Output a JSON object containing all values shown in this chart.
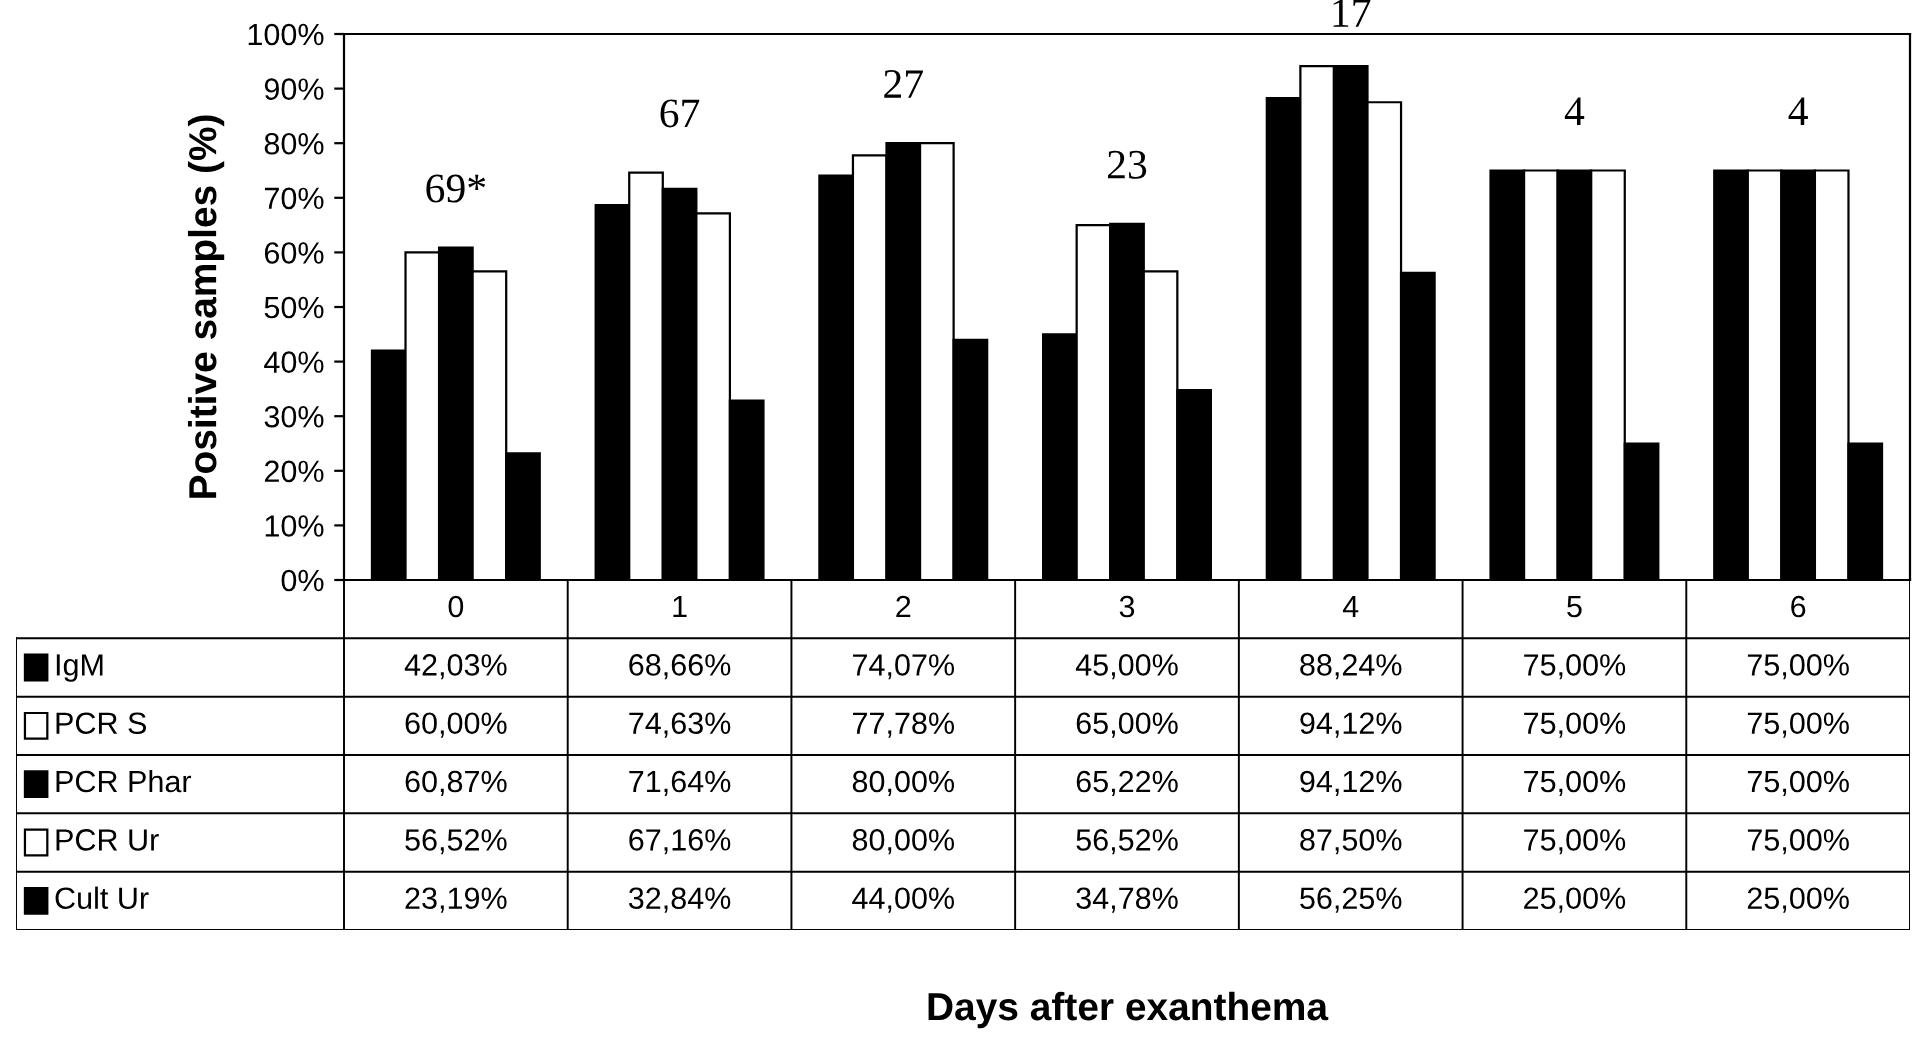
{
  "chart_data": {
    "type": "bar",
    "ylabel": "Positive samples (%)",
    "categories": [
      "0",
      "1",
      "2",
      "3",
      "4",
      "5",
      "6"
    ],
    "series": [
      {
        "name": "IgM",
        "color": "#000000",
        "values": [
          42.03,
          68.66,
          74.07,
          45.0,
          88.24,
          75.0,
          75.0
        ],
        "value_labels": [
          "42,03%",
          "68,66%",
          "74,07%",
          "45,00%",
          "88,24%",
          "75,00%",
          "75,00%"
        ]
      },
      {
        "name": "PCR S",
        "color": "#ffffff",
        "values": [
          60.0,
          74.63,
          77.78,
          65.0,
          94.12,
          75.0,
          75.0
        ],
        "value_labels": [
          "60,00%",
          "74,63%",
          "77,78%",
          "65,00%",
          "94,12%",
          "75,00%",
          "75,00%"
        ]
      },
      {
        "name": "PCR Phar",
        "color": "#000000",
        "values": [
          60.87,
          71.64,
          80.0,
          65.22,
          94.12,
          75.0,
          75.0
        ],
        "value_labels": [
          "60,87%",
          "71,64%",
          "80,00%",
          "65,22%",
          "94,12%",
          "75,00%",
          "75,00%"
        ]
      },
      {
        "name": "PCR Ur",
        "color": "#ffffff",
        "values": [
          56.52,
          67.16,
          80.0,
          56.52,
          87.5,
          75.0,
          75.0
        ],
        "value_labels": [
          "56,52%",
          "67,16%",
          "80,00%",
          "56,52%",
          "87,50%",
          "75,00%",
          "75,00%"
        ]
      },
      {
        "name": "Cult Ur",
        "color": "#000000",
        "values": [
          23.19,
          32.84,
          44.0,
          34.78,
          56.25,
          25.0,
          25.0
        ],
        "value_labels": [
          "23,19%",
          "32,84%",
          "44,00%",
          "34,78%",
          "56,25%",
          "25,00%",
          "25,00%"
        ]
      }
    ],
    "ylim": [
      0,
      100
    ],
    "yticks": [
      {
        "value": 0,
        "label": "0%"
      },
      {
        "value": 10,
        "label": "10%"
      },
      {
        "value": 20,
        "label": "20%"
      },
      {
        "value": 30,
        "label": "30%"
      },
      {
        "value": 40,
        "label": "40%"
      },
      {
        "value": 50,
        "label": "50%"
      },
      {
        "value": 60,
        "label": "60%"
      },
      {
        "value": 70,
        "label": "70%"
      },
      {
        "value": 80,
        "label": "80%"
      },
      {
        "value": 90,
        "label": "90%"
      },
      {
        "value": 100,
        "label": "100%"
      }
    ],
    "annotations": [
      "69*",
      "67",
      "27",
      "23",
      "17",
      "4",
      "4",
      "Days after exanthema"
    ],
    "grid": false,
    "legend": "left",
    "tick_labels": "y"
  }
}
